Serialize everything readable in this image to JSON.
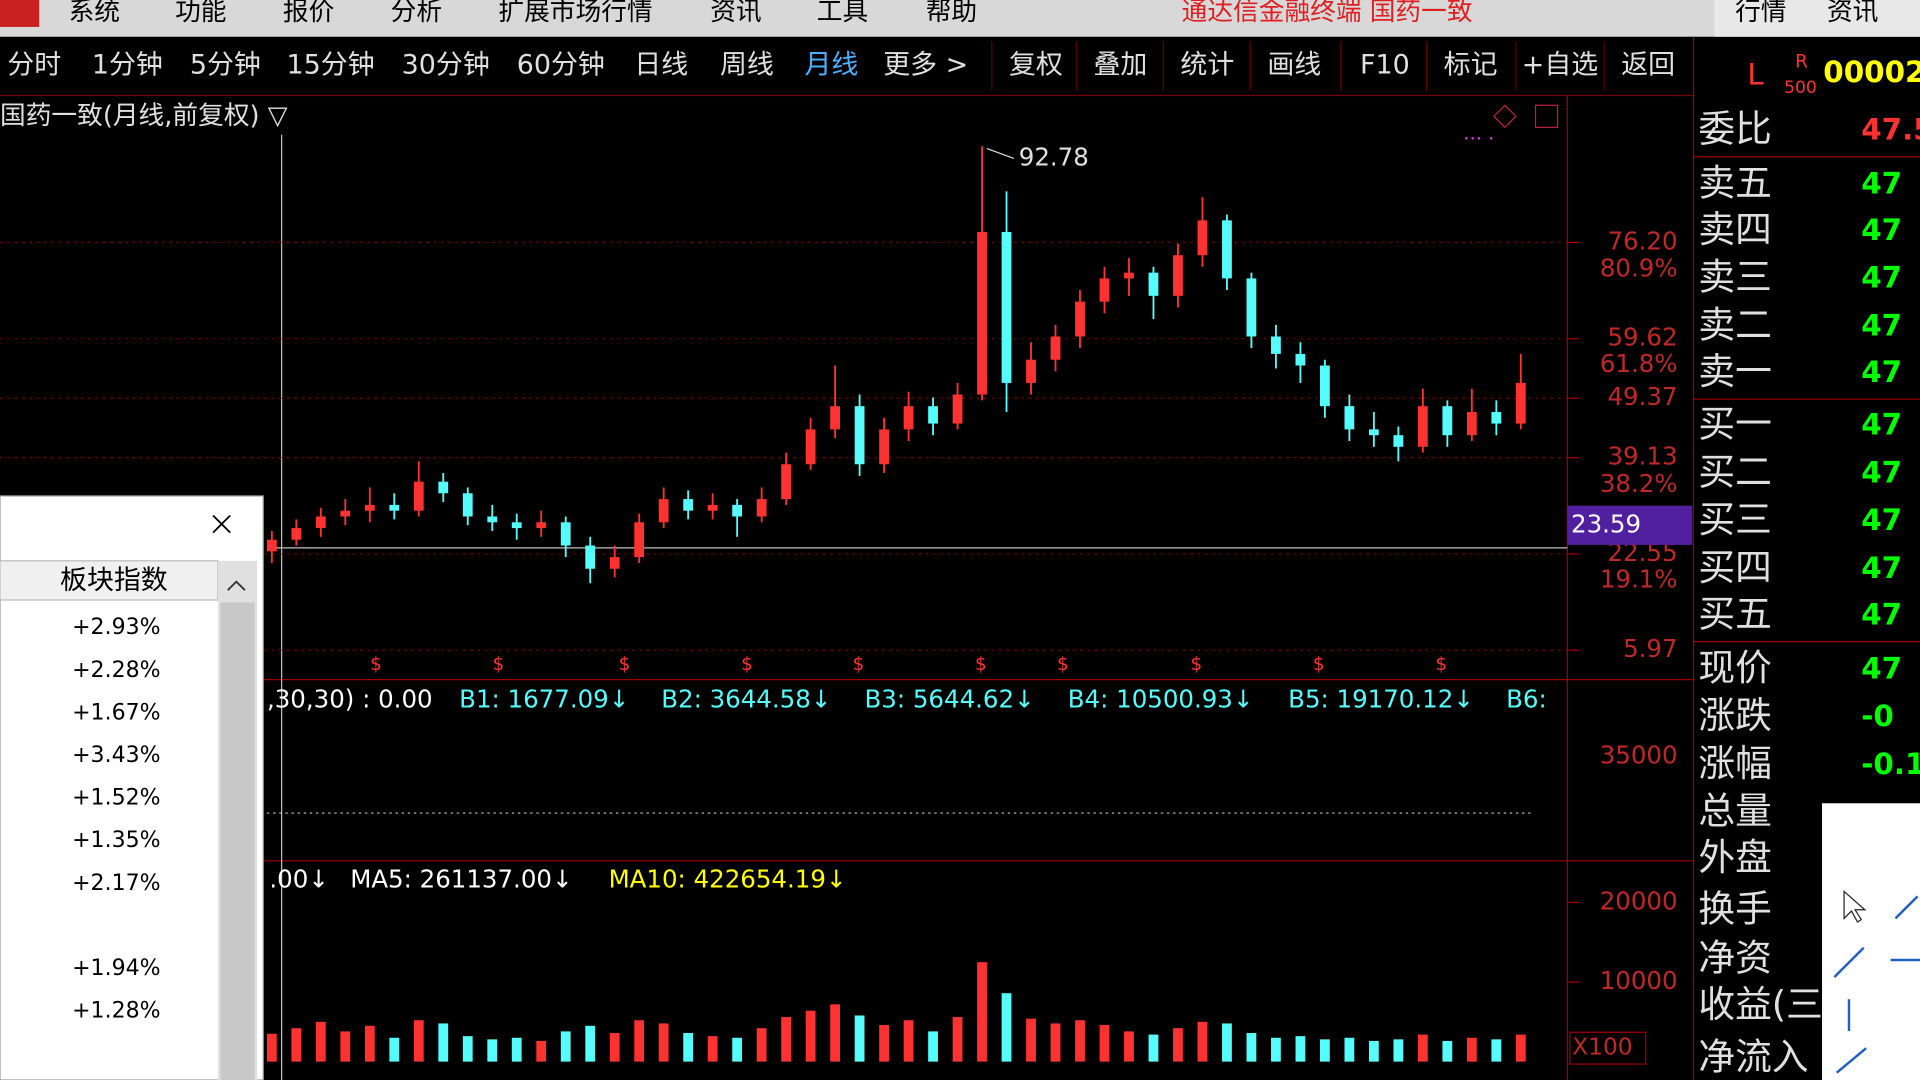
{
  "menu": {
    "items": [
      "系统",
      "功能",
      "报价",
      "分析",
      "扩展市场行情",
      "资讯",
      "工具",
      "帮助"
    ],
    "app_title": "通达信金融终端  国药一致",
    "right_items": [
      "行情",
      "资讯"
    ]
  },
  "toolbar": {
    "items": [
      "分时",
      "1分钟",
      "5分钟",
      "15分钟",
      "30分钟",
      "60分钟",
      "日线",
      "周线",
      "月线",
      "更多 >",
      "复权",
      "叠加",
      "统计",
      "画线",
      "F10",
      "标记",
      "+自选",
      "返回"
    ],
    "active": 8
  },
  "price_panel": {
    "title": "国药一致(月线,前复权) ▽",
    "ylim": [
      0.91,
      101.08
    ],
    "yticks": [
      {
        "value": 76.2,
        "label": "76.20"
      },
      59.62,
      49.37,
      39.13,
      22.55,
      5.97
    ],
    "fib_labels": [
      "80.9%",
      "61.8%",
      "38.2%",
      "19.1%"
    ],
    "crosshair_value": 23.59,
    "up_color": "#ff3232",
    "down_color": "#54fcfc",
    "signal_symbol": "$",
    "candles": [
      [
        23,
        26.5,
        21,
        25
      ],
      [
        25,
        28.5,
        24,
        27
      ],
      [
        27,
        30.5,
        25.5,
        29
      ],
      [
        29,
        32,
        27.5,
        30
      ],
      [
        30,
        34,
        28,
        31
      ],
      [
        31,
        33,
        28.5,
        30
      ],
      [
        30,
        38.5,
        29,
        35
      ],
      [
        35,
        36.5,
        31.5,
        33
      ],
      [
        33,
        34,
        27.5,
        29
      ],
      [
        29,
        31,
        26.5,
        28
      ],
      [
        28,
        29.5,
        25,
        27
      ],
      [
        27,
        30,
        25.5,
        28
      ],
      [
        28,
        29,
        22,
        24
      ],
      [
        24,
        25.5,
        17.5,
        20
      ],
      [
        20,
        24,
        18.5,
        22
      ],
      [
        22,
        29.5,
        21,
        28
      ],
      [
        28,
        34,
        27,
        32
      ],
      [
        32,
        33.5,
        28.5,
        30
      ],
      [
        30,
        33,
        28.5,
        31
      ],
      [
        31,
        32,
        25.5,
        29
      ],
      [
        29,
        34,
        28,
        32
      ],
      [
        32,
        40,
        31,
        38
      ],
      [
        38,
        46,
        37,
        44
      ],
      [
        44,
        55,
        42.5,
        48
      ],
      [
        48,
        50,
        36,
        38
      ],
      [
        38,
        46,
        36.5,
        44
      ],
      [
        44,
        50.5,
        42,
        48
      ],
      [
        48,
        49.5,
        43,
        45
      ],
      [
        45,
        52,
        44,
        50
      ],
      [
        50,
        92.78,
        49,
        78
      ],
      [
        78,
        85,
        47,
        52
      ],
      [
        52,
        59,
        50,
        56
      ],
      [
        56,
        62,
        54,
        60
      ],
      [
        60,
        68,
        58,
        66
      ],
      [
        66,
        72,
        64,
        70
      ],
      [
        70,
        73.5,
        67,
        71
      ],
      [
        71,
        72,
        63,
        67
      ],
      [
        67,
        76,
        65,
        74
      ],
      [
        74,
        84,
        72,
        80
      ],
      [
        80,
        81,
        68,
        70
      ],
      [
        70,
        71,
        58,
        60
      ],
      [
        60,
        62,
        54.5,
        57
      ],
      [
        57,
        59,
        52,
        55
      ],
      [
        55,
        56,
        46,
        48
      ],
      [
        48,
        50,
        42,
        44
      ],
      [
        44,
        47,
        41,
        43
      ],
      [
        43,
        44.5,
        38.5,
        41
      ],
      [
        41,
        51,
        40,
        48
      ],
      [
        48,
        49,
        41,
        43
      ],
      [
        43,
        51,
        42,
        47
      ],
      [
        47,
        49,
        43,
        45
      ],
      [
        45,
        57,
        44,
        52
      ]
    ]
  },
  "indicator_panel": {
    "labels": [
      {
        "text": ",30,30) : 0.00",
        "color": "#ffffff"
      },
      {
        "text": "B1: 1677.09↓",
        "color": "#54fcfc"
      },
      {
        "text": "B2: 3644.58↓",
        "color": "#54fcfc"
      },
      {
        "text": "B3: 5644.62↓",
        "color": "#54fcfc"
      },
      {
        "text": "B4: 10500.93↓",
        "color": "#54fcfc"
      },
      {
        "text": "B5: 19170.12↓",
        "color": "#54fcfc"
      },
      {
        "text": "B6: ",
        "color": "#54fcfc"
      }
    ],
    "axis_label": "35000"
  },
  "volume_panel": {
    "labels": [
      {
        "text": ".00↓",
        "color": "#ffffff"
      },
      {
        "text": "MA5: 261137.00↓",
        "color": "#ffffff"
      },
      {
        "text": "MA10: 422654.19↓",
        "color": "#ffff00"
      }
    ],
    "ylim": [
      -2308,
      25231
    ],
    "yticks": [
      20000,
      10000
    ],
    "unit_label": "X100",
    "values": [
      3500,
      4200,
      5000,
      3800,
      4500,
      3000,
      5200,
      4800,
      3200,
      2800,
      3000,
      2600,
      3800,
      4500,
      3600,
      5200,
      4800,
      3600,
      3200,
      3000,
      4200,
      5600,
      6400,
      7200,
      5800,
      4600,
      5200,
      3800,
      5600,
      12500,
      8600,
      5400,
      4800,
      5200,
      4600,
      3800,
      3400,
      4200,
      5000,
      4800,
      3600,
      3000,
      3200,
      2800,
      3000,
      2600,
      2800,
      3400,
      2600,
      3000,
      2800,
      3400
    ]
  },
  "sector_popup": {
    "header": "板块指数",
    "rows": [
      "+2.93%",
      "+2.28%",
      "+1.67%",
      "+3.43%",
      "+1.52%",
      "+1.35%",
      "+2.17%",
      null,
      "+1.94%",
      "+1.28%"
    ]
  },
  "quote_panel": {
    "header": {
      "market": "L",
      "r": "R",
      "level": "500",
      "code": "00002"
    },
    "rows": [
      {
        "label": "委比",
        "value": "47.5",
        "color": "#ff3232"
      },
      {
        "label": "卖五",
        "value": "47",
        "color": "#00ff00"
      },
      {
        "label": "卖四",
        "value": "47",
        "color": "#00ff00"
      },
      {
        "label": "卖三",
        "value": "47",
        "color": "#00ff00"
      },
      {
        "label": "卖二",
        "value": "47",
        "color": "#00ff00"
      },
      {
        "label": "卖一",
        "value": "47",
        "color": "#00ff00"
      },
      {
        "label": "买一",
        "value": "47",
        "color": "#00ff00"
      },
      {
        "label": "买二",
        "value": "47",
        "color": "#00ff00"
      },
      {
        "label": "买三",
        "value": "47",
        "color": "#00ff00"
      },
      {
        "label": "买四",
        "value": "47",
        "color": "#00ff00"
      },
      {
        "label": "买五",
        "value": "47",
        "color": "#00ff00"
      },
      {
        "label": "现价",
        "value": "47",
        "color": "#00ff00"
      },
      {
        "label": "涨跌",
        "value": "-0",
        "color": "#00ff00"
      },
      {
        "label": "涨幅",
        "value": "-0.1",
        "color": "#00ff00"
      },
      {
        "label": "总量"
      },
      {
        "label": "外盘"
      },
      {
        "label": "换手"
      },
      {
        "label": "净资"
      },
      {
        "label": "收益(三)"
      },
      {
        "label": "净流入"
      }
    ]
  }
}
